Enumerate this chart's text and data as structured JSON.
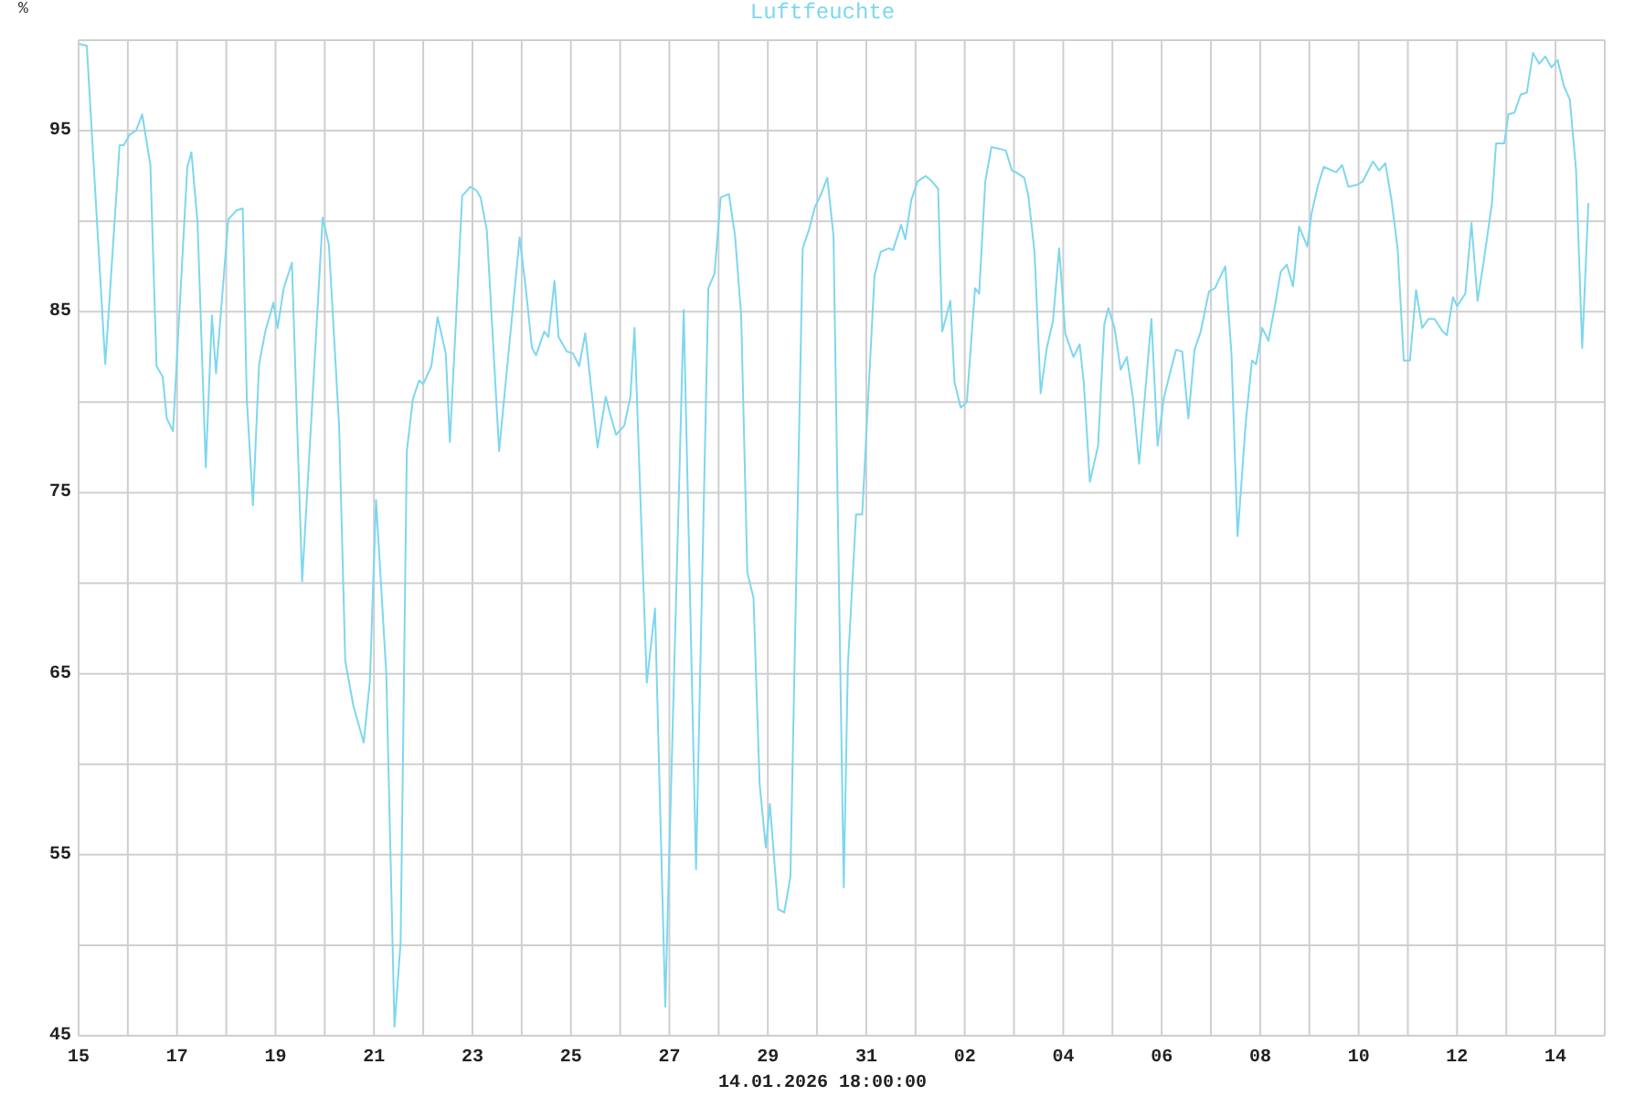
{
  "chart_data": {
    "type": "line",
    "title": "Luftfeuchte",
    "ylabel": "%",
    "annotations": [
      "14.01.2026 18:00:00"
    ],
    "x": [
      "2025-12-15T00:00",
      "2025-12-15T04:00",
      "2025-12-15T13:00",
      "2025-12-15T20:00",
      "2025-12-15T22:00",
      "2025-12-16T01:00",
      "2025-12-16T04:00",
      "2025-12-16T07:00",
      "2025-12-16T11:00",
      "2025-12-16T14:00",
      "2025-12-16T17:00",
      "2025-12-16T19:00",
      "2025-12-16T22:00",
      "2025-12-17T05:00",
      "2025-12-17T07:00",
      "2025-12-17T10:00",
      "2025-12-17T14:00",
      "2025-12-17T17:00",
      "2025-12-17T19:00",
      "2025-12-18T01:00",
      "2025-12-18T05:00",
      "2025-12-18T08:00",
      "2025-12-18T10:00",
      "2025-12-18T13:00",
      "2025-12-18T16:00",
      "2025-12-18T19:00",
      "2025-12-18T23:00",
      "2025-12-19T01:00",
      "2025-12-19T04:00",
      "2025-12-19T08:00",
      "2025-12-19T13:00",
      "2025-12-19T23:00",
      "2025-12-20T02:00",
      "2025-12-20T07:00",
      "2025-12-20T10:00",
      "2025-12-20T14:00",
      "2025-12-20T19:00",
      "2025-12-20T22:00",
      "2025-12-21T01:00",
      "2025-12-21T06:00",
      "2025-12-21T10:00",
      "2025-12-21T13:00",
      "2025-12-21T16:00",
      "2025-12-21T19:00",
      "2025-12-21T22:00",
      "2025-12-22T00:00",
      "2025-12-22T04:00",
      "2025-12-22T07:00",
      "2025-12-22T11:00",
      "2025-12-22T13:00",
      "2025-12-22T19:00",
      "2025-12-22T23:00",
      "2025-12-23T02:00",
      "2025-12-23T04:00",
      "2025-12-23T07:00",
      "2025-12-23T13:00",
      "2025-12-23T23:00",
      "2025-12-24T02:00",
      "2025-12-24T05:00",
      "2025-12-24T07:00",
      "2025-12-24T11:00",
      "2025-12-24T13:00",
      "2025-12-24T16:00",
      "2025-12-24T18:00",
      "2025-12-24T22:00",
      "2025-12-25T01:00",
      "2025-12-25T04:00",
      "2025-12-25T07:00",
      "2025-12-25T13:00",
      "2025-12-25T17:00",
      "2025-12-25T19:00",
      "2025-12-25T22:00",
      "2025-12-26T02:00",
      "2025-12-26T05:00",
      "2025-12-26T07:00",
      "2025-12-26T13:00",
      "2025-12-26T17:00",
      "2025-12-26T22:00",
      "2025-12-27T07:00",
      "2025-12-27T13:00",
      "2025-12-27T19:00",
      "2025-12-27T22:00",
      "2025-12-28T01:00",
      "2025-12-28T05:00",
      "2025-12-28T08:00",
      "2025-12-28T11:00",
      "2025-12-28T14:00",
      "2025-12-28T17:00",
      "2025-12-28T20:00",
      "2025-12-28T23:00",
      "2025-12-29T01:00",
      "2025-12-29T05:00",
      "2025-12-29T08:00",
      "2025-12-29T11:00",
      "2025-12-29T17:00",
      "2025-12-29T20:00",
      "2025-12-29T23:00",
      "2025-12-30T02:00",
      "2025-12-30T05:00",
      "2025-12-30T08:00",
      "2025-12-30T13:00",
      "2025-12-30T15:00",
      "2025-12-30T19:00",
      "2025-12-30T22:00",
      "2025-12-31T04:00",
      "2025-12-31T07:00",
      "2025-12-31T11:00",
      "2025-12-31T13:00",
      "2025-12-31T17:00",
      "2025-12-31T19:00",
      "2025-12-31T22:00",
      "2026-01-01T01:00",
      "2026-01-01T05:00",
      "2026-01-01T08:00",
      "2026-01-01T11:00",
      "2026-01-01T13:00",
      "2026-01-01T17:00",
      "2026-01-01T19:00",
      "2026-01-01T22:00",
      "2026-01-02T01:00",
      "2026-01-02T05:00",
      "2026-01-02T07:00",
      "2026-01-02T10:00",
      "2026-01-02T13:00",
      "2026-01-02T17:00",
      "2026-01-02T20:00",
      "2026-01-02T23:00",
      "2026-01-03T01:00",
      "2026-01-03T05:00",
      "2026-01-03T07:00",
      "2026-01-03T10:00",
      "2026-01-03T13:00",
      "2026-01-03T16:00",
      "2026-01-03T19:00",
      "2026-01-03T22:00",
      "2026-01-04T01:00",
      "2026-01-04T05:00",
      "2026-01-04T08:00",
      "2026-01-04T10:00",
      "2026-01-04T13:00",
      "2026-01-04T17:00",
      "2026-01-04T20:00",
      "2026-01-04T22:00",
      "2026-01-05T01:00",
      "2026-01-05T04:00",
      "2026-01-05T07:00",
      "2026-01-05T10:00",
      "2026-01-05T13:00",
      "2026-01-05T19:00",
      "2026-01-05T22:00",
      "2026-01-06T01:00",
      "2026-01-06T04:00",
      "2026-01-06T07:00",
      "2026-01-06T10:00",
      "2026-01-06T13:00",
      "2026-01-06T16:00",
      "2026-01-06T19:00",
      "2026-01-06T23:00",
      "2026-01-07T02:00",
      "2026-01-07T04:00",
      "2026-01-07T07:00",
      "2026-01-07T10:00",
      "2026-01-07T13:00",
      "2026-01-07T17:00",
      "2026-01-07T20:00",
      "2026-01-07T22:00",
      "2026-01-08T01:00",
      "2026-01-08T04:00",
      "2026-01-08T07:00",
      "2026-01-08T10:00",
      "2026-01-08T13:00",
      "2026-01-08T16:00",
      "2026-01-08T19:00",
      "2026-01-08T23:00",
      "2026-01-09T01:00",
      "2026-01-09T04:00",
      "2026-01-09T07:00",
      "2026-01-09T11:00",
      "2026-01-09T13:00",
      "2026-01-09T16:00",
      "2026-01-09T19:00",
      "2026-01-09T23:00",
      "2026-01-10T02:00",
      "2026-01-10T07:00",
      "2026-01-10T10:00",
      "2026-01-10T13:00",
      "2026-01-10T16:00",
      "2026-01-10T19:00",
      "2026-01-10T22:00",
      "2026-01-11T01:00",
      "2026-01-11T04:00",
      "2026-01-11T07:00",
      "2026-01-11T10:00",
      "2026-01-11T13:00",
      "2026-01-11T17:00",
      "2026-01-11T19:00",
      "2026-01-11T22:00",
      "2026-01-12T00:00",
      "2026-01-12T04:00",
      "2026-01-12T07:00",
      "2026-01-12T10:00",
      "2026-01-12T13:00",
      "2026-01-12T17:00",
      "2026-01-12T19:00",
      "2026-01-12T23:00",
      "2026-01-13T01:00",
      "2026-01-13T04:00",
      "2026-01-13T07:00",
      "2026-01-13T10:00",
      "2026-01-13T13:00",
      "2026-01-13T16:00",
      "2026-01-13T19:00",
      "2026-01-13T22:00",
      "2026-01-14T01:00",
      "2026-01-14T04:00",
      "2026-01-14T07:00",
      "2026-01-14T10:00",
      "2026-01-14T13:00",
      "2026-01-14T16:00"
    ],
    "series": [
      {
        "color": "#7ed7ee",
        "values": [
          99.8,
          99.7,
          82.1,
          94.2,
          94.2,
          94.8,
          95.0,
          95.9,
          93.1,
          82.0,
          81.4,
          79.1,
          78.4,
          93.0,
          93.8,
          89.9,
          76.4,
          84.8,
          81.6,
          90.1,
          90.6,
          90.7,
          80.2,
          74.3,
          82.1,
          83.9,
          85.5,
          84.1,
          86.3,
          87.7,
          70.1,
          90.2,
          88.7,
          78.7,
          65.7,
          63.2,
          61.2,
          64.6,
          74.6,
          65.0,
          45.5,
          50.2,
          77.3,
          80.2,
          81.2,
          81.0,
          82.0,
          84.7,
          82.7,
          77.8,
          91.4,
          91.9,
          91.7,
          91.3,
          89.5,
          77.3,
          89.1,
          86.3,
          83.0,
          82.6,
          83.9,
          83.6,
          86.7,
          83.6,
          82.8,
          82.7,
          82.0,
          83.8,
          77.5,
          80.3,
          79.4,
          78.2,
          78.7,
          80.3,
          84.1,
          64.5,
          68.6,
          46.6,
          85.1,
          54.2,
          86.3,
          87.1,
          91.3,
          91.5,
          89.2,
          84.8,
          70.6,
          69.2,
          58.9,
          55.4,
          57.8,
          52.0,
          51.8,
          53.8,
          88.5,
          89.5,
          90.8,
          91.5,
          92.4,
          89.2,
          53.2,
          65.4,
          73.8,
          73.8,
          87.0,
          88.3,
          88.5,
          88.4,
          89.8,
          89.0,
          91.2,
          92.2,
          92.5,
          92.2,
          91.8,
          83.9,
          85.6,
          81.1,
          79.7,
          80.0,
          86.3,
          86.0,
          92.2,
          94.1,
          94.0,
          93.9,
          92.8,
          92.7,
          92.4,
          91.4,
          88.3,
          80.5,
          83.0,
          84.5,
          88.5,
          83.8,
          82.5,
          83.2,
          81.1,
          75.6,
          77.6,
          84.3,
          85.2,
          84.1,
          81.8,
          82.5,
          80.2,
          76.6,
          84.6,
          77.6,
          80.2,
          81.6,
          82.9,
          82.8,
          79.1,
          82.9,
          83.9,
          86.1,
          86.3,
          86.8,
          87.5,
          82.7,
          72.6,
          78.9,
          82.3,
          82.1,
          84.1,
          83.4,
          85.2,
          87.2,
          87.6,
          86.4,
          89.7,
          88.6,
          90.4,
          91.9,
          93.0,
          92.8,
          92.7,
          93.1,
          91.9,
          92.0,
          92.2,
          93.3,
          92.8,
          93.2,
          91.2,
          88.5,
          82.3,
          82.3,
          86.2,
          84.1,
          84.6,
          84.6,
          83.9,
          83.7,
          85.8,
          85.3,
          86.0,
          89.9,
          85.6,
          87.8,
          91.0,
          94.3,
          94.3,
          95.9,
          96.0,
          97.0,
          97.1,
          99.3,
          98.7,
          99.1,
          98.5,
          98.9,
          97.5,
          96.7,
          92.8,
          83.0,
          91.0
        ]
      }
    ],
    "xlim": [
      "2025-12-15",
      "2026-01-15"
    ],
    "xticks": [
      {
        "value": "2025-12-15",
        "label": "15"
      },
      {
        "value": "2025-12-16",
        "label": null
      },
      {
        "value": "2025-12-17",
        "label": "17"
      },
      {
        "value": "2025-12-18",
        "label": null
      },
      {
        "value": "2025-12-19",
        "label": "19"
      },
      {
        "value": "2025-12-20",
        "label": null
      },
      {
        "value": "2025-12-21",
        "label": "21"
      },
      {
        "value": "2025-12-22",
        "label": null
      },
      {
        "value": "2025-12-23",
        "label": "23"
      },
      {
        "value": "2025-12-24",
        "label": null
      },
      {
        "value": "2025-12-25",
        "label": "25"
      },
      {
        "value": "2025-12-26",
        "label": null
      },
      {
        "value": "2025-12-27",
        "label": "27"
      },
      {
        "value": "2025-12-28",
        "label": null
      },
      {
        "value": "2025-12-29",
        "label": "29"
      },
      {
        "value": "2025-12-30",
        "label": null
      },
      {
        "value": "2025-12-31",
        "label": "31"
      },
      {
        "value": "2026-01-01",
        "label": null
      },
      {
        "value": "2026-01-02",
        "label": "02"
      },
      {
        "value": "2026-01-03",
        "label": null
      },
      {
        "value": "2026-01-04",
        "label": "04"
      },
      {
        "value": "2026-01-05",
        "label": null
      },
      {
        "value": "2026-01-06",
        "label": "06"
      },
      {
        "value": "2026-01-07",
        "label": null
      },
      {
        "value": "2026-01-08",
        "label": "08"
      },
      {
        "value": "2026-01-09",
        "label": null
      },
      {
        "value": "2026-01-10",
        "label": "10"
      },
      {
        "value": "2026-01-11",
        "label": null
      },
      {
        "value": "2026-01-12",
        "label": "12"
      },
      {
        "value": "2026-01-13",
        "label": null
      },
      {
        "value": "2026-01-14",
        "label": "14"
      },
      {
        "value": "2026-01-15",
        "label": null
      }
    ],
    "ylim": [
      45,
      100
    ],
    "yticks": [
      45,
      {
        "value": 50,
        "label": null
      },
      55,
      {
        "value": 60,
        "label": null
      },
      65,
      {
        "value": 70,
        "label": null
      },
      75,
      {
        "value": 80,
        "label": null
      },
      85,
      {
        "value": 90,
        "label": null
      },
      95,
      {
        "value": 100,
        "label": null
      }
    ],
    "grid": true,
    "marker": "none",
    "line_style": "solid"
  }
}
